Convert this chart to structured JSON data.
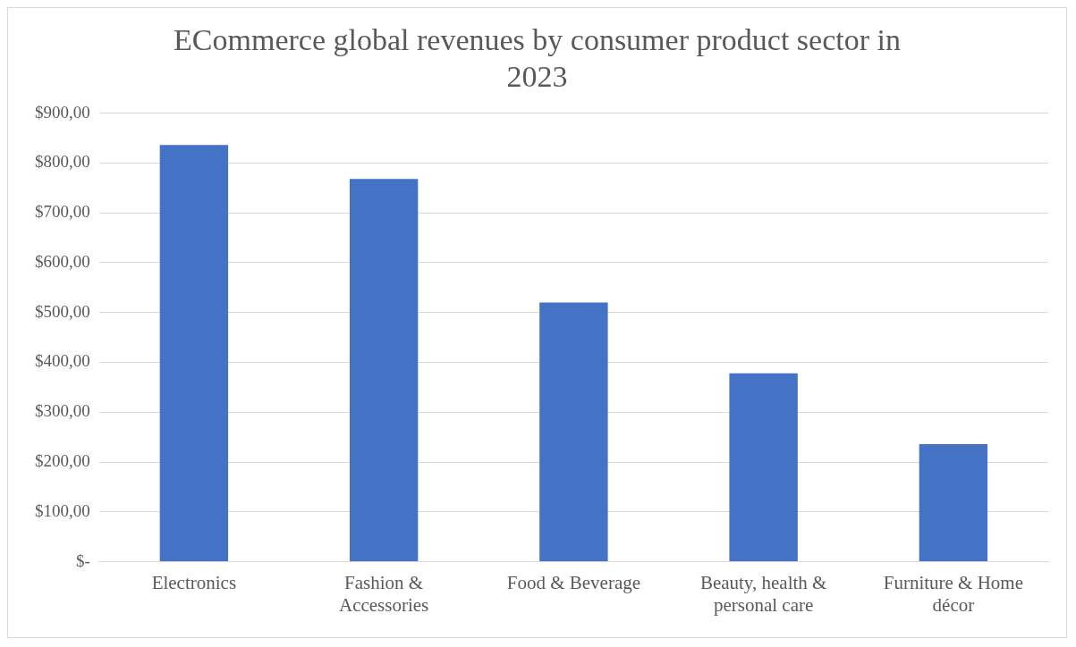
{
  "chart_data": {
    "type": "bar",
    "title": "ECommerce global revenues by consumer product sector in 2023",
    "categories": [
      "Electronics",
      "Fashion & Accessories",
      "Food & Beverage",
      "Beauty, health & personal care",
      "Furniture & Home décor"
    ],
    "values": [
      836,
      768,
      520,
      378,
      236
    ],
    "color": "#4472c4",
    "ylim": [
      0,
      900
    ],
    "yticks": [
      {
        "value": 0,
        "label": "$-"
      },
      {
        "value": 100,
        "label": "$100,00"
      },
      {
        "value": 200,
        "label": "$200,00"
      },
      {
        "value": 300,
        "label": "$300,00"
      },
      {
        "value": 400,
        "label": "$400,00"
      },
      {
        "value": 500,
        "label": "$500,00"
      },
      {
        "value": 600,
        "label": "$600,00"
      },
      {
        "value": 700,
        "label": "$700,00"
      },
      {
        "value": 800,
        "label": "$800,00"
      },
      {
        "value": 900,
        "label": "$900,00"
      }
    ],
    "grid": "y",
    "legend": false
  }
}
